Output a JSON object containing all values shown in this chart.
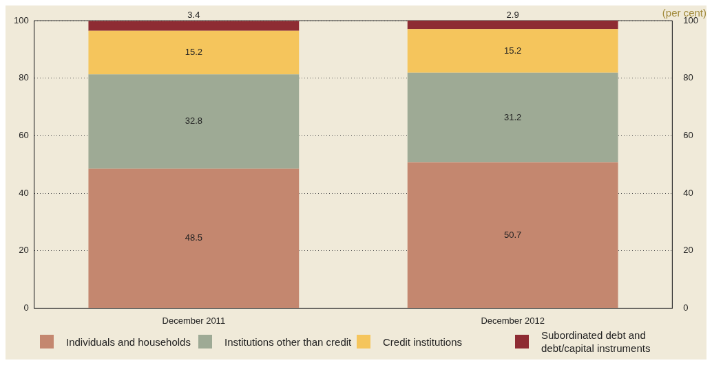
{
  "chart_data": {
    "type": "bar",
    "stacked": true,
    "categories": [
      "December 2011",
      "December 2012"
    ],
    "series": [
      {
        "name": "Individuals and households",
        "color": "#c4876f",
        "values": [
          48.5,
          50.7
        ]
      },
      {
        "name": "Institutions other than credit",
        "color": "#9eaa95",
        "values": [
          32.8,
          31.2
        ]
      },
      {
        "name": "Credit institutions",
        "color": "#f5c55c",
        "values": [
          15.2,
          15.2
        ]
      },
      {
        "name": "Subordinated debt and debt/capital instruments",
        "color": "#8e2c33",
        "values": [
          3.4,
          2.9
        ]
      }
    ],
    "ylim": [
      0,
      100
    ],
    "yticks": [
      0,
      20,
      40,
      60,
      80,
      100
    ],
    "y2lim": [
      0,
      100
    ],
    "y2ticks": [
      0,
      20,
      40,
      60,
      80,
      100
    ],
    "grid": "y",
    "legend": "bottom",
    "data_labels": true,
    "annotations": [
      "(per cent)"
    ]
  }
}
